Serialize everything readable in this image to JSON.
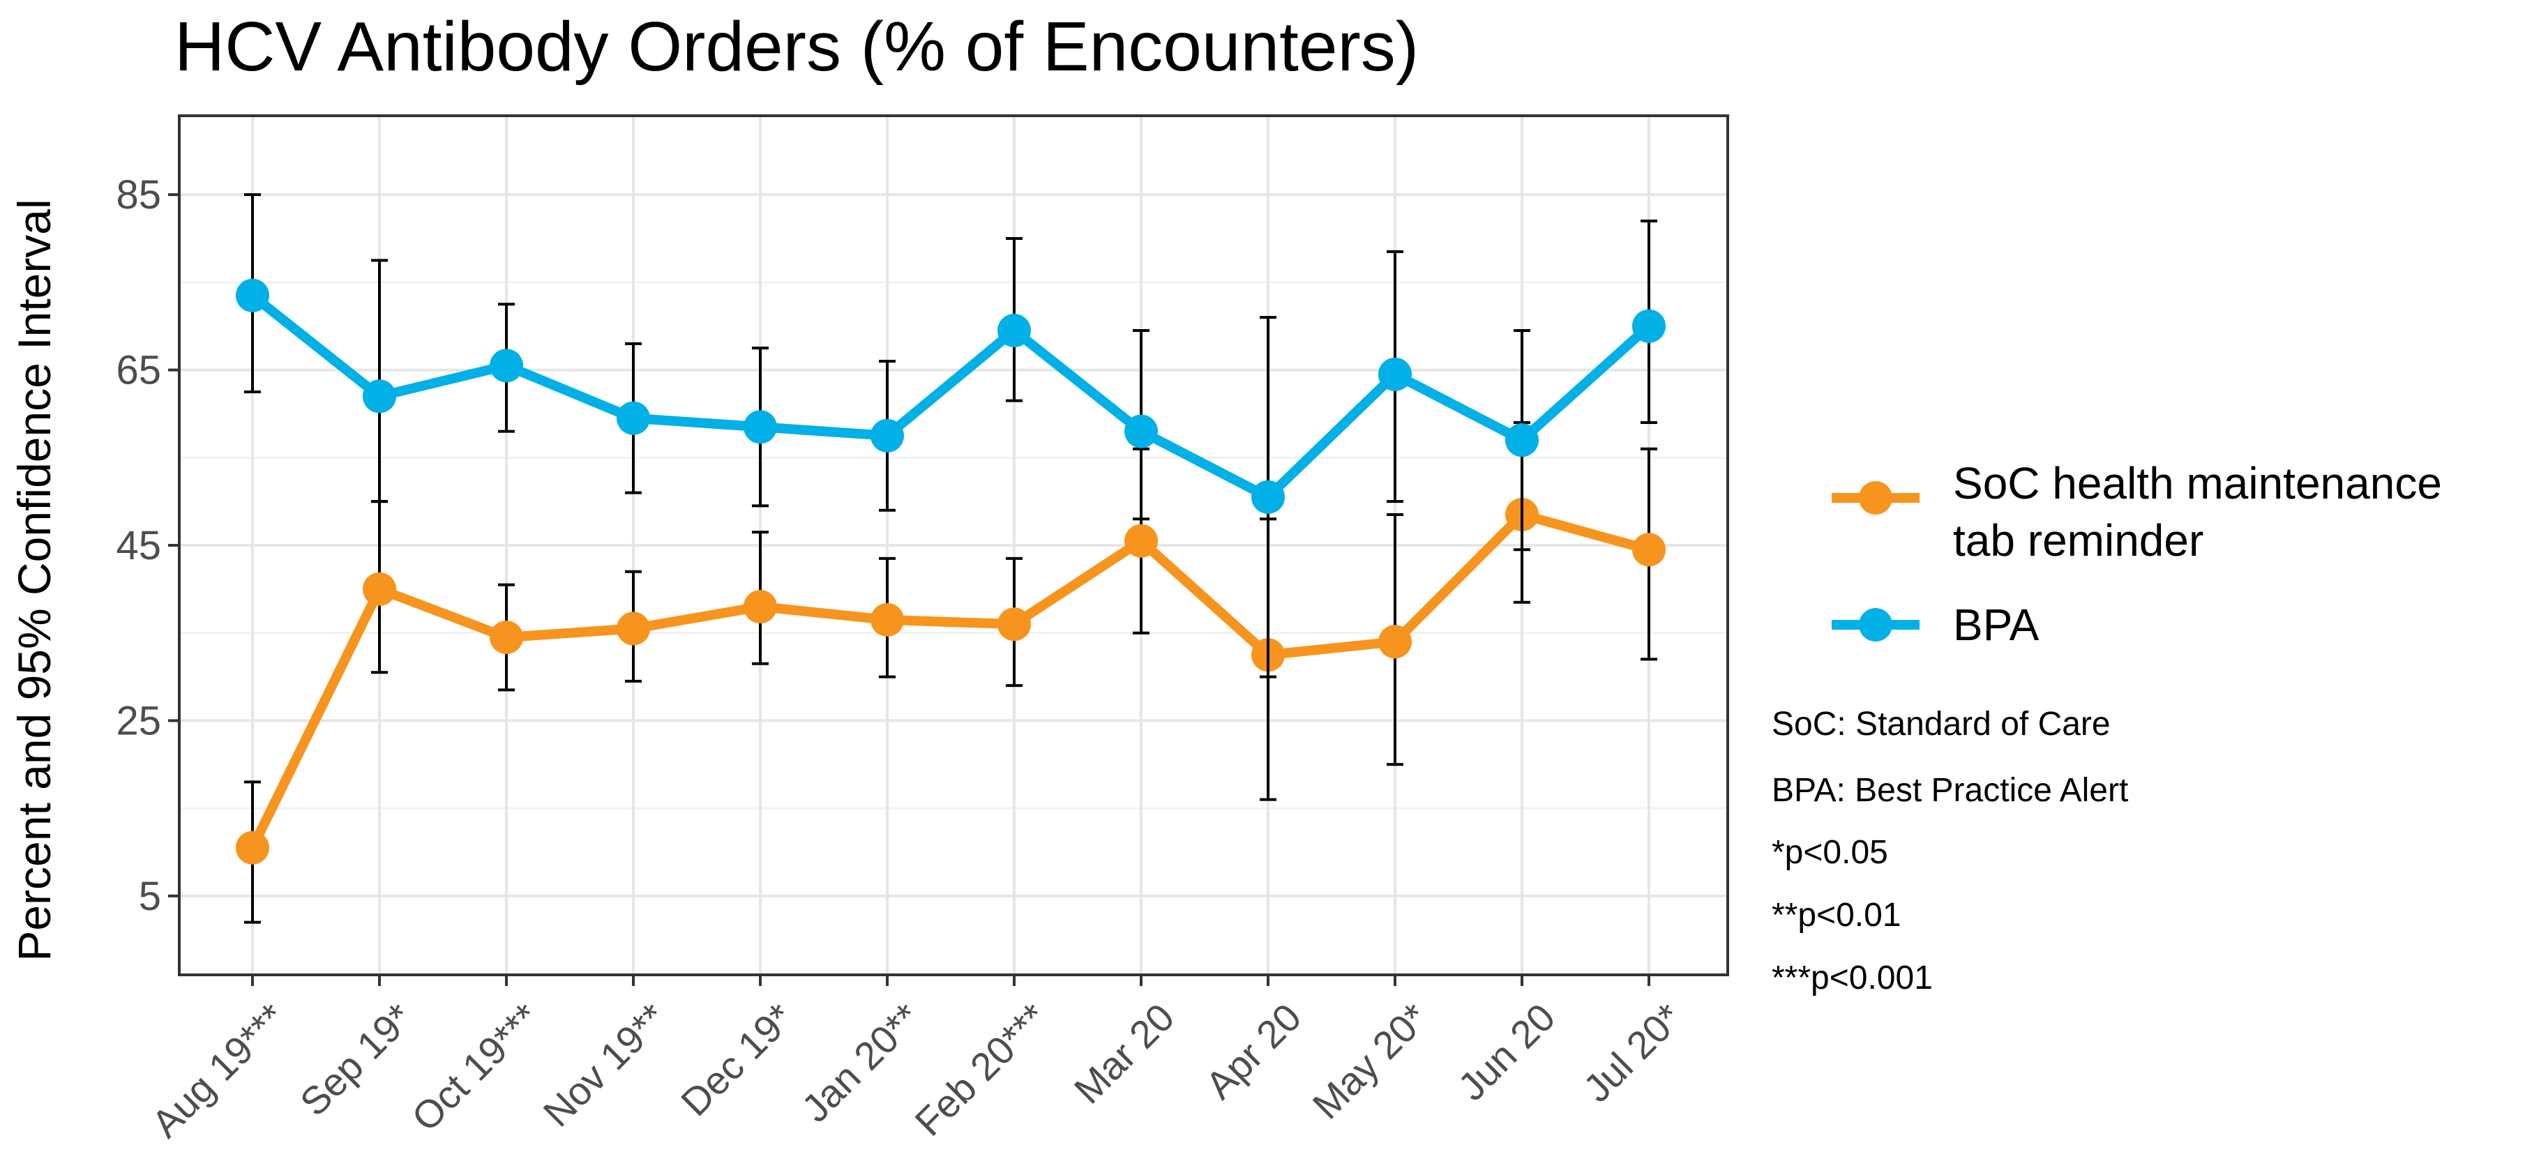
{
  "chart_data": {
    "type": "line",
    "title": "HCV Antibody Orders (% of Encounters)",
    "xlabel": "",
    "ylabel": "Percent and 95% Confidence Interval",
    "ylim": [
      -4,
      94
    ],
    "yticks": [
      5,
      25,
      45,
      65,
      85
    ],
    "grid": true,
    "categories": [
      "Aug 19***",
      "Sep 19*",
      "Oct 19***",
      "Nov 19**",
      "Dec 19*",
      "Jan 20**",
      "Feb 20***",
      "Mar 20",
      "Apr 20",
      "May 20*",
      "Jun 20",
      "Jul 20*"
    ],
    "series": [
      {
        "name": "SoC health maintenance tab reminder",
        "legend_lines": [
          "SoC health maintenance",
          "tab reminder"
        ],
        "color": "#F7941D",
        "values": [
          10.5,
          40,
          34.5,
          35.5,
          38,
          36.5,
          36,
          45.5,
          32.5,
          34,
          48.5,
          44.5
        ],
        "ci_low": [
          2,
          30.5,
          28.5,
          29.5,
          31.5,
          30,
          29,
          35,
          16,
          20,
          38.5,
          32
        ],
        "ci_high": [
          18,
          50,
          40.5,
          42,
          46.5,
          43.5,
          43.5,
          56,
          48,
          48.5,
          59,
          56
        ]
      },
      {
        "name": "BPA",
        "legend_lines": [
          "BPA"
        ],
        "color": "#00B0E6",
        "values": [
          73.5,
          62,
          65.5,
          59.5,
          58.5,
          57.5,
          69.5,
          58,
          50.5,
          64.5,
          57,
          70
        ],
        "ci_low": [
          62.5,
          50,
          58,
          51,
          49.5,
          49,
          61.5,
          48,
          30,
          50,
          44.5,
          59
        ],
        "ci_high": [
          85,
          77.5,
          72.5,
          68,
          67.5,
          66,
          80,
          69.5,
          71,
          78.5,
          69.5,
          82
        ]
      }
    ]
  },
  "notes": [
    "SoC: Standard of Care",
    "BPA: Best Practice Alert",
    "*p<0.05",
    "**p<0.01",
    "***p<0.001"
  ]
}
